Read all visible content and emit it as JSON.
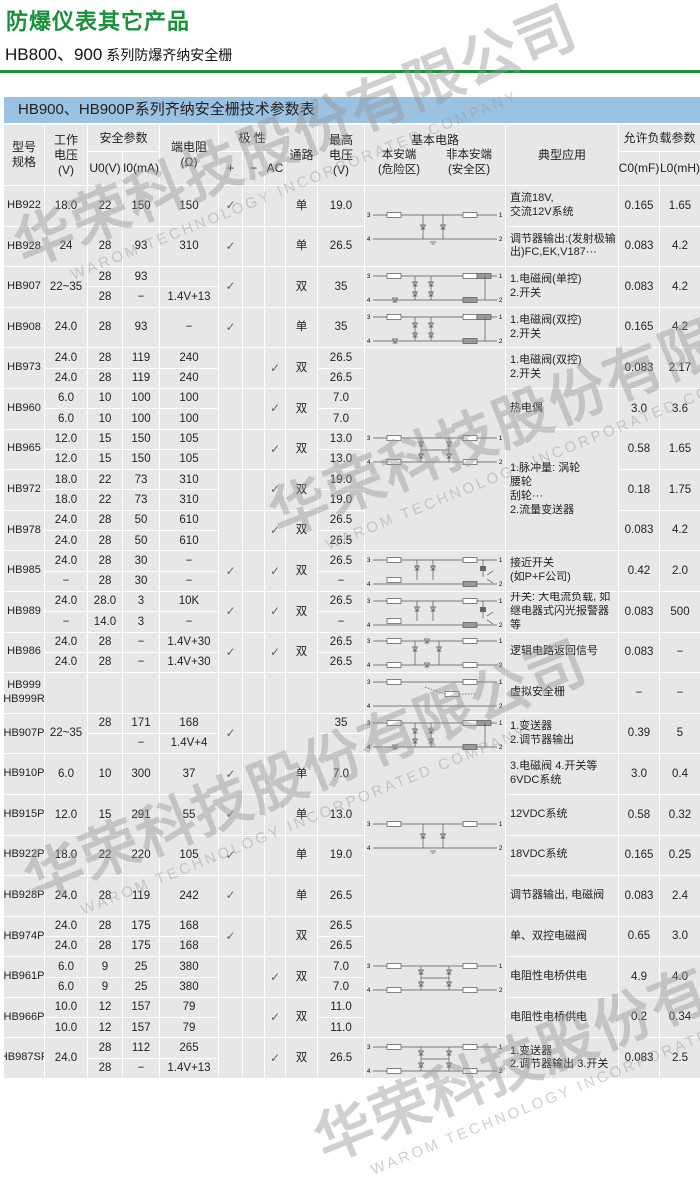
{
  "heading": "防爆仪表其它产品",
  "subheading_model": "HB800、900",
  "subheading_text": " 系列防爆齐纳安全栅",
  "table_title": "HB900、HB900P系列齐纳安全栅技术参数表",
  "watermark": {
    "cn": "华荣科技股份有限公司",
    "en": "WAROM TECHNOLOGY INCORPORATED COMPANY"
  },
  "colors": {
    "heading": "#1a8f3c",
    "band": "#9cc2e2",
    "cell": "#e6e7e8"
  },
  "terminals": [
    "3",
    "4",
    "1",
    "2"
  ],
  "check": "✓",
  "header": {
    "model": "型号\n规格",
    "voltage": "工作\n电压\n(V)",
    "safety": "安全参数",
    "u0": "U0(V)",
    "i0": "I0(mA)",
    "resistance": "端电阻\n(Ω)",
    "polarity": "极 性",
    "plus": "+",
    "minus": "−",
    "ac": "AC",
    "channel": "通路",
    "vmax": "最高\n电压\n(V)",
    "circuit": "基本电路",
    "circuit_left": "本安端\n(危险区)",
    "circuit_right": "非本安端\n(安全区)",
    "application": "典型应用",
    "load": "允许负载参数",
    "c0": "C0(mF)",
    "l0": "L0(mH)"
  },
  "models": [
    {
      "name": "HB922",
      "v": "18.0",
      "u0": "22",
      "i0": "150",
      "r": "150",
      "pol": [
        1,
        0,
        0
      ],
      "ch": "单",
      "vmax": "19.0",
      "c0": "0.165",
      "l0": "1.65"
    },
    {
      "name": "HB928",
      "v": "24",
      "u0": "28",
      "i0": "93",
      "r": "310",
      "pol": [
        1,
        0,
        0
      ],
      "ch": "单",
      "vmax": "26.5",
      "c0": "0.083",
      "l0": "4.2"
    },
    {
      "name": "HB907",
      "v": "22~35",
      "u0": [
        "28",
        "28"
      ],
      "i0": [
        "93",
        "−"
      ],
      "r": [
        "",
        "1.4V+13"
      ],
      "pol": [
        1,
        0,
        0
      ],
      "ch": "双",
      "vmax": "35",
      "c0": "0.083",
      "l0": "4.2"
    },
    {
      "name": "HB908",
      "v": "24.0",
      "u0": "28",
      "i0": "93",
      "r": "−",
      "pol": [
        1,
        0,
        0
      ],
      "ch": "单",
      "vmax": "35",
      "c0": "0.165",
      "l0": "4.2"
    },
    {
      "name": "HB973",
      "v": [
        "24.0",
        "24.0"
      ],
      "u0": [
        "28",
        "28"
      ],
      "i0": [
        "119",
        "119"
      ],
      "r": [
        "240",
        "240"
      ],
      "pol": [
        0,
        0,
        1
      ],
      "ch": "双",
      "vmax": [
        "26.5",
        "26.5"
      ],
      "c0": "0.083",
      "l0": "2.17"
    },
    {
      "name": "HB960",
      "v": [
        "6.0",
        "6.0"
      ],
      "u0": [
        "10",
        "10"
      ],
      "i0": [
        "100",
        "100"
      ],
      "r": [
        "100",
        "100"
      ],
      "pol": [
        0,
        0,
        1
      ],
      "ch": "双",
      "vmax": [
        "7.0",
        "7.0"
      ],
      "c0": "3.0",
      "l0": "3.6"
    },
    {
      "name": "HB965",
      "v": [
        "12.0",
        "12.0"
      ],
      "u0": [
        "15",
        "15"
      ],
      "i0": [
        "150",
        "150"
      ],
      "r": [
        "105",
        "105"
      ],
      "pol": [
        0,
        0,
        1
      ],
      "ch": "双",
      "vmax": [
        "13.0",
        "13.0"
      ],
      "c0": "0.58",
      "l0": "1.65"
    },
    {
      "name": "HB972",
      "v": [
        "18.0",
        "18.0"
      ],
      "u0": [
        "22",
        "22"
      ],
      "i0": [
        "73",
        "73"
      ],
      "r": [
        "310",
        "310"
      ],
      "pol": [
        0,
        0,
        1
      ],
      "ch": "双",
      "vmax": [
        "19.0",
        "19.0"
      ],
      "c0": "0.18",
      "l0": "1.75"
    },
    {
      "name": "HB978",
      "v": [
        "24.0",
        "24.0"
      ],
      "u0": [
        "28",
        "28"
      ],
      "i0": [
        "50",
        "50"
      ],
      "r": [
        "610",
        "610"
      ],
      "pol": [
        0,
        0,
        1
      ],
      "ch": "双",
      "vmax": [
        "26.5",
        "26.5"
      ],
      "c0": "0.083",
      "l0": "4.2"
    },
    {
      "name": "HB985",
      "v": [
        "24.0",
        "−"
      ],
      "u0": [
        "28",
        "28"
      ],
      "i0": [
        "30",
        "30"
      ],
      "r": [
        "−",
        "−"
      ],
      "pol": [
        1,
        0,
        1
      ],
      "ch": "双",
      "vmax": [
        "26.5",
        "−"
      ],
      "c0": "0.42",
      "l0": "2.0"
    },
    {
      "name": "HB989",
      "v": [
        "24.0",
        "−"
      ],
      "u0": [
        "28.0",
        "14.0"
      ],
      "i0": [
        "3",
        "3"
      ],
      "r": [
        "10K",
        "−"
      ],
      "pol": [
        1,
        0,
        1
      ],
      "ch": "双",
      "vmax": [
        "26.5",
        "−"
      ],
      "c0": "0.083",
      "l0": "500"
    },
    {
      "name": "HB986",
      "v": [
        "24.0",
        "24.0"
      ],
      "u0": [
        "28",
        "28"
      ],
      "i0": [
        "−",
        "−"
      ],
      "r": [
        "1.4V+30",
        "1.4V+30"
      ],
      "pol": [
        1,
        0,
        1
      ],
      "ch": "双",
      "vmax": [
        "26.5",
        "26.5"
      ],
      "c0": "0.083",
      "l0": "−"
    },
    {
      "name": "HB999\nHB999R",
      "v": "",
      "u0": "",
      "i0": "",
      "r": "",
      "pol": [
        0,
        0,
        0
      ],
      "ch": "",
      "vmax": "",
      "c0": "−",
      "l0": "−"
    },
    {
      "name": "HB907P",
      "v": "22~35",
      "u0": [
        "28",
        ""
      ],
      "i0": [
        "171",
        "−"
      ],
      "r": [
        "168",
        "1.4V+4"
      ],
      "pol": [
        1,
        0,
        0
      ],
      "ch": "",
      "vmax": [
        "35",
        ""
      ],
      "c0": "0.39",
      "l0": "5"
    },
    {
      "name": "HB910P",
      "v": "6.0",
      "u0": "10",
      "i0": "300",
      "r": "37",
      "pol": [
        1,
        0,
        0
      ],
      "ch": "单",
      "vmax": "7.0",
      "c0": "3.0",
      "l0": "0.4"
    },
    {
      "name": "HB915P",
      "v": "12.0",
      "u0": "15",
      "i0": "291",
      "r": "55",
      "pol": [
        1,
        0,
        0
      ],
      "ch": "单",
      "vmax": "13.0",
      "c0": "0.58",
      "l0": "0.32"
    },
    {
      "name": "HB922P",
      "v": "18.0",
      "u0": "22",
      "i0": "220",
      "r": "105",
      "pol": [
        1,
        0,
        0
      ],
      "ch": "单",
      "vmax": "19.0",
      "c0": "0.165",
      "l0": "0.25"
    },
    {
      "name": "HB928P",
      "v": "24.0",
      "u0": "28",
      "i0": "119",
      "r": "242",
      "pol": [
        1,
        0,
        0
      ],
      "ch": "单",
      "vmax": "26.5",
      "c0": "0.083",
      "l0": "2.4"
    },
    {
      "name": "HB974P",
      "v": [
        "24.0",
        "24.0"
      ],
      "u0": [
        "28",
        "28"
      ],
      "i0": [
        "175",
        "175"
      ],
      "r": [
        "168",
        "168"
      ],
      "pol": [
        1,
        0,
        0
      ],
      "ch": "双",
      "vmax": [
        "26.5",
        "26.5"
      ],
      "c0": "0.65",
      "l0": "3.0"
    },
    {
      "name": "HB961P",
      "v": [
        "6.0",
        "6.0"
      ],
      "u0": [
        "9",
        "9"
      ],
      "i0": [
        "25",
        "25"
      ],
      "r": [
        "380",
        "380"
      ],
      "pol": [
        0,
        0,
        1
      ],
      "ch": "双",
      "vmax": [
        "7.0",
        "7.0"
      ],
      "c0": "4.9",
      "l0": "4.0"
    },
    {
      "name": "HB966P",
      "v": [
        "10.0",
        "10.0"
      ],
      "u0": [
        "12",
        "12"
      ],
      "i0": [
        "157",
        "157"
      ],
      "r": [
        "79",
        "79"
      ],
      "pol": [
        0,
        0,
        1
      ],
      "ch": "双",
      "vmax": [
        "11.0",
        "11.0"
      ],
      "c0": "0.2",
      "l0": "0.34"
    },
    {
      "name": "HB987SP",
      "v": "24.0",
      "u0": [
        "28",
        "28"
      ],
      "i0": [
        "112",
        "−"
      ],
      "r": [
        "265",
        "1.4V+13"
      ],
      "pol": [
        0,
        0,
        1
      ],
      "ch": "双",
      "vmax": "26.5",
      "c0": "0.083",
      "l0": "2.5"
    }
  ],
  "applications": [
    {
      "start": 0,
      "span": 1,
      "text": "直流18V,\n交流12V系统"
    },
    {
      "start": 1,
      "span": 1,
      "text": "调节器输出:(发射极输\n出)FC,EK,V187···"
    },
    {
      "start": 2,
      "span": 1,
      "text": "1.电磁阀(单控)\n2.开关"
    },
    {
      "start": 3,
      "span": 1,
      "text": "1.电磁阀(双控)\n2.开关"
    },
    {
      "start": 4,
      "span": 1,
      "text": "1.电磁阀(双控)\n2.开关"
    },
    {
      "start": 5,
      "span": 1,
      "text": "热电偶"
    },
    {
      "start": 6,
      "span": 3,
      "text": "1.脉冲量:  涡轮\n              腰轮\n              刮轮···\n2.流量变送器"
    },
    {
      "start": 9,
      "span": 1,
      "text": "接近开关\n(如P+F公司)"
    },
    {
      "start": 10,
      "span": 1,
      "text": "开关: 大电流负载, 如\n继电器式闪光报警器等"
    },
    {
      "start": 11,
      "span": 1,
      "text": "逻辑电路返回信号"
    },
    {
      "start": 12,
      "span": 1,
      "text": "虚拟安全栅"
    },
    {
      "start": 13,
      "span": 1,
      "text": "1.变送器\n2.调节器输出"
    },
    {
      "start": 14,
      "span": 1,
      "text": "3.电磁阀 4.开关等\n6VDC系统"
    },
    {
      "start": 15,
      "span": 1,
      "text": "12VDC系统"
    },
    {
      "start": 16,
      "span": 1,
      "text": "18VDC系统"
    },
    {
      "start": 17,
      "span": 1,
      "text": "调节器输出, 电磁阀"
    },
    {
      "start": 18,
      "span": 1,
      "text": "单、双控电磁阀"
    },
    {
      "start": 19,
      "span": 1,
      "text": "电阻性电桥供电"
    },
    {
      "start": 20,
      "span": 1,
      "text": "电阻性电桥供电"
    },
    {
      "start": 21,
      "span": 1,
      "text": "1.变送器\n2.调节器输出    3.开关"
    }
  ],
  "circuits": [
    {
      "start": 0,
      "span": 2,
      "type": "single"
    },
    {
      "start": 2,
      "span": 1,
      "type": "valve"
    },
    {
      "start": 3,
      "span": 1,
      "type": "valve"
    },
    {
      "start": 4,
      "span": 5,
      "type": "bridge"
    },
    {
      "start": 9,
      "span": 1,
      "type": "switch"
    },
    {
      "start": 10,
      "span": 1,
      "type": "switch"
    },
    {
      "start": 11,
      "span": 1,
      "type": "logic"
    },
    {
      "start": 12,
      "span": 1,
      "type": "virtual"
    },
    {
      "start": 13,
      "span": 1,
      "type": "valve"
    },
    {
      "start": 14,
      "span": 4,
      "type": "single"
    },
    {
      "start": 18,
      "span": 3,
      "type": "bridge"
    },
    {
      "start": 21,
      "span": 1,
      "type": "bridge"
    }
  ]
}
